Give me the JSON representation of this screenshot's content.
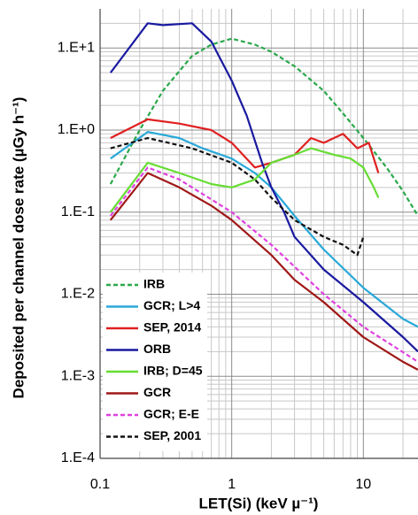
{
  "chart_data": {
    "type": "line",
    "x_label": "LET(Si) (keV µ⁻¹)",
    "y_label": "Deposited per channel dose rate (µGy h⁻¹)",
    "xlog": true,
    "ylog": true,
    "grid": true,
    "minor_grid": true,
    "legend": "lower left",
    "xlim": [
      0.1,
      26
    ],
    "xticks": [
      0.1,
      1,
      10
    ],
    "ylim": [
      0.0001,
      30
    ],
    "yticks": [
      {
        "value": 0.0001,
        "label": "1.E-4"
      },
      {
        "value": 0.001,
        "label": "1.E-3"
      },
      {
        "value": 0.01,
        "label": "1.E-2"
      },
      {
        "value": 0.1,
        "label": "1.E-1"
      },
      {
        "value": 1,
        "label": "1.E+0"
      },
      {
        "value": 10,
        "label": "1.E+1"
      }
    ],
    "series": [
      {
        "name": "IRB",
        "color": "#2aa84a",
        "dashed": true,
        "x": [
          0.12,
          0.2,
          0.3,
          0.5,
          0.7,
          1,
          1.5,
          2,
          3,
          5,
          7,
          10,
          15,
          20,
          26
        ],
        "values": [
          0.22,
          1.0,
          3,
          8,
          11,
          13,
          11,
          9,
          6,
          3,
          1.6,
          0.8,
          0.35,
          0.18,
          0.09
        ]
      },
      {
        "name": "GCR; L>4",
        "color": "#29a8d8",
        "dashed": false,
        "x": [
          0.12,
          0.23,
          0.4,
          0.6,
          1,
          1.5,
          2,
          3,
          5,
          10,
          20,
          26
        ],
        "values": [
          0.45,
          0.95,
          0.8,
          0.6,
          0.45,
          0.3,
          0.2,
          0.09,
          0.035,
          0.012,
          0.005,
          0.004
        ]
      },
      {
        "name": "SEP, 2014",
        "color": "#e02020",
        "dashed": false,
        "x": [
          0.12,
          0.23,
          0.4,
          0.7,
          1,
          1.5,
          2,
          3,
          4,
          5,
          7,
          9,
          11,
          13
        ],
        "values": [
          0.8,
          1.35,
          1.2,
          1.0,
          0.7,
          0.35,
          0.4,
          0.5,
          0.8,
          0.7,
          0.9,
          0.6,
          0.7,
          0.3
        ]
      },
      {
        "name": "ORB",
        "color": "#1a1aa0",
        "dashed": false,
        "x": [
          0.12,
          0.23,
          0.3,
          0.5,
          0.7,
          1,
          1.3,
          1.7,
          2,
          2.5,
          3,
          5,
          10,
          20,
          26
        ],
        "values": [
          5,
          20,
          19,
          20,
          12,
          4,
          1.5,
          0.4,
          0.2,
          0.1,
          0.05,
          0.02,
          0.008,
          0.003,
          0.002
        ]
      },
      {
        "name": "IRB; D=45",
        "color": "#66dd33",
        "dashed": false,
        "x": [
          0.12,
          0.23,
          0.4,
          0.7,
          1,
          1.5,
          2,
          3,
          4,
          6,
          8,
          10,
          12,
          13
        ],
        "values": [
          0.1,
          0.4,
          0.3,
          0.22,
          0.2,
          0.25,
          0.4,
          0.5,
          0.6,
          0.5,
          0.45,
          0.35,
          0.2,
          0.15
        ]
      },
      {
        "name": "GCR",
        "color": "#a01818",
        "dashed": false,
        "x": [
          0.12,
          0.23,
          0.4,
          0.7,
          1,
          2,
          3,
          5,
          10,
          20,
          26
        ],
        "values": [
          0.08,
          0.3,
          0.2,
          0.12,
          0.08,
          0.03,
          0.015,
          0.008,
          0.003,
          0.0015,
          0.0012
        ]
      },
      {
        "name": "GCR; E-E",
        "color": "#e040e0",
        "dashed": true,
        "x": [
          0.12,
          0.23,
          0.4,
          1,
          2,
          5,
          10,
          26
        ],
        "values": [
          0.09,
          0.35,
          0.25,
          0.1,
          0.04,
          0.01,
          0.004,
          0.0015
        ]
      },
      {
        "name": "SEP, 2001",
        "color": "#111111",
        "dashed": true,
        "x": [
          0.12,
          0.23,
          0.5,
          1,
          1.5,
          2,
          3,
          5,
          7,
          9,
          10
        ],
        "values": [
          0.6,
          0.8,
          0.6,
          0.4,
          0.25,
          0.15,
          0.08,
          0.05,
          0.04,
          0.03,
          0.05
        ]
      }
    ]
  }
}
